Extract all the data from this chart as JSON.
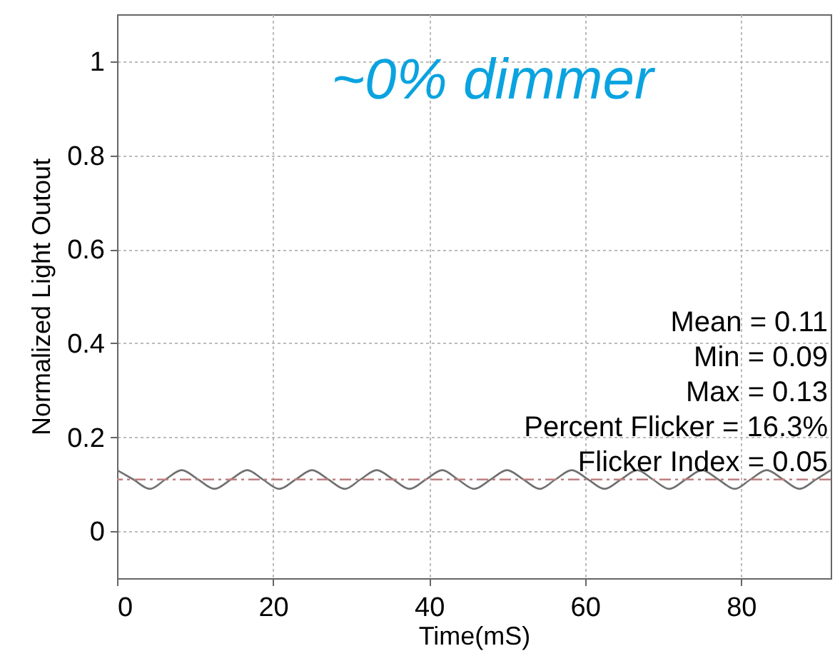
{
  "chart_data": {
    "type": "line",
    "annotations": [
      "~0% dimmer",
      "Mean = 0.11",
      "Min = 0.09",
      "Max = 0.13",
      "Percent Flicker = 16.3%",
      "Flicker Index = 0.05"
    ],
    "xlabel": "Time(mS)",
    "ylabel": "Normalized Light Outout",
    "x": [
      0,
      2.1,
      4.2,
      6.2,
      8.3,
      10.4,
      12.5,
      14.6,
      16.7,
      18.7,
      20.8,
      22.9,
      25,
      27.1,
      29.2,
      31.2,
      33.3,
      35.4,
      37.5,
      39.6,
      41.7,
      43.7,
      45.8,
      47.9,
      50,
      52.1,
      54.2,
      56.2,
      58.3,
      60.4,
      62.5,
      64.6,
      66.7,
      68.7,
      70.8,
      72.9,
      75,
      77.1,
      79.2,
      81.2,
      83.3,
      85.4,
      87.5,
      89.6,
      91.5
    ],
    "series": [
      {
        "color": "#707070",
        "values": [
          0.13,
          0.11,
          0.09,
          0.11,
          0.13,
          0.11,
          0.09,
          0.11,
          0.13,
          0.11,
          0.09,
          0.11,
          0.13,
          0.11,
          0.09,
          0.11,
          0.13,
          0.11,
          0.09,
          0.11,
          0.13,
          0.11,
          0.09,
          0.11,
          0.13,
          0.11,
          0.09,
          0.11,
          0.13,
          0.11,
          0.09,
          0.11,
          0.13,
          0.11,
          0.09,
          0.11,
          0.13,
          0.11,
          0.09,
          0.11,
          0.13,
          0.11,
          0.09,
          0.11,
          0.13
        ]
      }
    ],
    "ref_lines": [
      {
        "axis": "y",
        "value": 0.11,
        "color": "#c08080",
        "line_style": "dashed"
      }
    ],
    "xlim": [
      0,
      91.5
    ],
    "xticks": [
      0,
      20,
      40,
      60,
      80
    ],
    "ylim": [
      -0.1,
      1.1
    ],
    "yticks": [
      0,
      0.2,
      0.4,
      0.6,
      0.8,
      1
    ],
    "grid": true,
    "marker": "none",
    "line_style": "solid"
  }
}
